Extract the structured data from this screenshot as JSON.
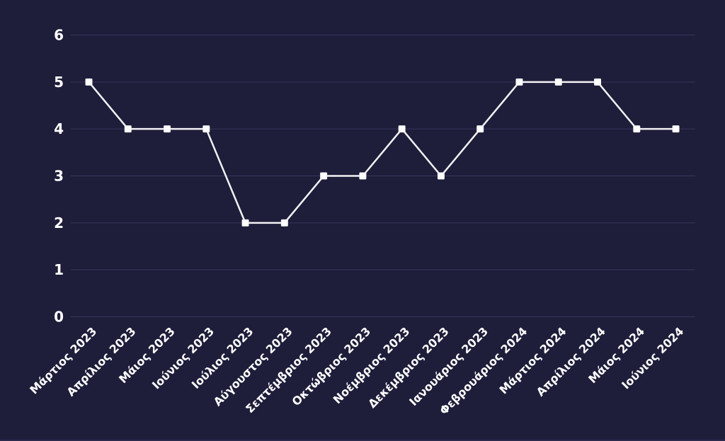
{
  "chart_data": {
    "type": "line",
    "categories": [
      "Μάρτιος 2023",
      "Απρίλιος 2023",
      "Μάιος 2023",
      "Ιούνιος 2023",
      "Ιούλιος 2023",
      "Αύγουστος 2023",
      "Σεπτέμβριος 2023",
      "Οκτώβριος 2023",
      "Νοέμβριος 2023",
      "Δεκέμβριος 2023",
      "Ιανουάριος 2023",
      "Φεβρουάριος 2024",
      "Μάρτιος 2024",
      "Απρίλιος 2024",
      "Μάιος 2024",
      "Ιούνιος 2024"
    ],
    "values": [
      5,
      4,
      4,
      4,
      2,
      2,
      3,
      3,
      4,
      3,
      4,
      5,
      5,
      5,
      4,
      4
    ],
    "title": "",
    "xlabel": "",
    "ylabel": "",
    "ylim": [
      0,
      6
    ],
    "yticks": [
      0,
      1,
      2,
      3,
      4,
      5,
      6
    ],
    "grid": "horizontal",
    "legend": "none",
    "marker_shape": "square",
    "x_label_rotation_deg": 45,
    "colors": {
      "background": "#1e1d3a",
      "gridline": "#38375a",
      "line": "#f2f2f4",
      "marker_fill": "#ffffff",
      "tick_label": "#ffffff",
      "bottom_edge": "#2b2a4c"
    }
  }
}
